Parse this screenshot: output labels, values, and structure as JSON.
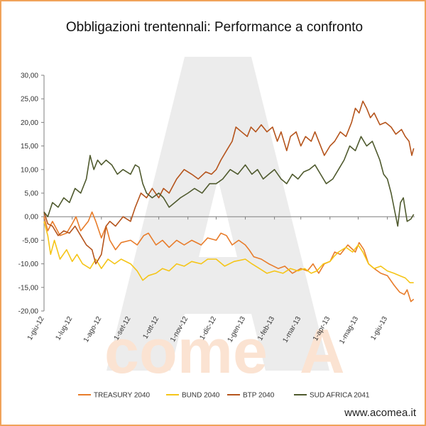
{
  "chart_data": {
    "type": "line",
    "title": "Obbligazioni trentennali: Performance a confronto",
    "ylim": [
      -20,
      30
    ],
    "yticks": [
      "30,00",
      "25,00",
      "20,00",
      "15,00",
      "10,00",
      "5,00",
      "0,00",
      "-5,00",
      "-10,00",
      "-15,00",
      "-20,00"
    ],
    "xlim": [
      "2012-06-01",
      "2013-06-30"
    ],
    "xticks": [
      {
        "label": "1-giu-12",
        "date": "2012-06-01"
      },
      {
        "label": "1-lug-12",
        "date": "2012-07-01"
      },
      {
        "label": "1-ago-12",
        "date": "2012-08-01"
      },
      {
        "label": "1-set-12",
        "date": "2012-09-01"
      },
      {
        "label": "1-ott-12",
        "date": "2012-10-01"
      },
      {
        "label": "1-nov-12",
        "date": "2012-11-01"
      },
      {
        "label": "1-dic-12",
        "date": "2012-12-01"
      },
      {
        "label": "1-gen-13",
        "date": "2013-01-01"
      },
      {
        "label": "1-feb-13",
        "date": "2013-02-01"
      },
      {
        "label": "1-mar-13",
        "date": "2013-03-01"
      },
      {
        "label": "1-apr-13",
        "date": "2013-04-01"
      },
      {
        "label": "1-mag-13",
        "date": "2013-05-01"
      },
      {
        "label": "1-giu-13",
        "date": "2013-06-01"
      }
    ],
    "legend_position": "bottom",
    "grid": false,
    "series": [
      {
        "name": "TREASURY 2040",
        "color": "#e87c2a",
        "points": [
          [
            "2012-06-01",
            0.0
          ],
          [
            "2012-06-05",
            -3.0
          ],
          [
            "2012-06-10",
            -1.0
          ],
          [
            "2012-06-18",
            -4.0
          ],
          [
            "2012-06-25",
            -3.5
          ],
          [
            "2012-07-01",
            -1.5
          ],
          [
            "2012-07-05",
            0.0
          ],
          [
            "2012-07-10",
            -3.0
          ],
          [
            "2012-07-18",
            -1.0
          ],
          [
            "2012-07-22",
            1.0
          ],
          [
            "2012-07-26",
            -1.0
          ],
          [
            "2012-08-01",
            -4.5
          ],
          [
            "2012-08-06",
            -2.0
          ],
          [
            "2012-08-10",
            -5.0
          ],
          [
            "2012-08-16",
            -7.0
          ],
          [
            "2012-08-22",
            -5.5
          ],
          [
            "2012-09-01",
            -5.0
          ],
          [
            "2012-09-08",
            -6.0
          ],
          [
            "2012-09-15",
            -4.0
          ],
          [
            "2012-09-20",
            -3.5
          ],
          [
            "2012-09-28",
            -6.0
          ],
          [
            "2012-10-05",
            -5.0
          ],
          [
            "2012-10-12",
            -6.5
          ],
          [
            "2012-10-20",
            -5.0
          ],
          [
            "2012-10-28",
            -6.0
          ],
          [
            "2012-11-05",
            -5.0
          ],
          [
            "2012-11-15",
            -6.0
          ],
          [
            "2012-11-22",
            -4.5
          ],
          [
            "2012-12-01",
            -5.0
          ],
          [
            "2012-12-06",
            -3.5
          ],
          [
            "2012-12-12",
            -4.0
          ],
          [
            "2012-12-18",
            -6.0
          ],
          [
            "2012-12-25",
            -5.0
          ],
          [
            "2013-01-01",
            -6.0
          ],
          [
            "2013-01-05",
            -7.0
          ],
          [
            "2013-01-10",
            -8.5
          ],
          [
            "2013-01-18",
            -9.0
          ],
          [
            "2013-01-26",
            -10.0
          ],
          [
            "2013-02-05",
            -11.0
          ],
          [
            "2013-02-12",
            -10.5
          ],
          [
            "2013-02-20",
            -12.0
          ],
          [
            "2013-03-01",
            -11.0
          ],
          [
            "2013-03-08",
            -11.5
          ],
          [
            "2013-03-14",
            -10.0
          ],
          [
            "2013-03-20",
            -12.0
          ],
          [
            "2013-03-26",
            -10.0
          ],
          [
            "2013-04-01",
            -9.5
          ],
          [
            "2013-04-06",
            -7.5
          ],
          [
            "2013-04-12",
            -8.0
          ],
          [
            "2013-04-20",
            -6.0
          ],
          [
            "2013-04-28",
            -7.5
          ],
          [
            "2013-05-02",
            -5.5
          ],
          [
            "2013-05-07",
            -7.0
          ],
          [
            "2013-05-12",
            -10.0
          ],
          [
            "2013-05-18",
            -11.0
          ],
          [
            "2013-05-25",
            -12.0
          ],
          [
            "2013-06-01",
            -12.5
          ],
          [
            "2013-06-08",
            -14.5
          ],
          [
            "2013-06-14",
            -16.0
          ],
          [
            "2013-06-19",
            -16.5
          ],
          [
            "2013-06-22",
            -15.5
          ],
          [
            "2013-06-26",
            -18.0
          ],
          [
            "2013-06-29",
            -17.5
          ]
        ]
      },
      {
        "name": "BUND 2040",
        "color": "#f5c518",
        "points": [
          [
            "2012-06-01",
            -1.0
          ],
          [
            "2012-06-05",
            -4.0
          ],
          [
            "2012-06-08",
            -8.0
          ],
          [
            "2012-06-12",
            -5.0
          ],
          [
            "2012-06-18",
            -9.0
          ],
          [
            "2012-06-25",
            -7.0
          ],
          [
            "2012-07-01",
            -9.5
          ],
          [
            "2012-07-06",
            -8.0
          ],
          [
            "2012-07-12",
            -10.0
          ],
          [
            "2012-07-20",
            -11.0
          ],
          [
            "2012-07-26",
            -9.0
          ],
          [
            "2012-08-01",
            -11.0
          ],
          [
            "2012-08-08",
            -9.0
          ],
          [
            "2012-08-15",
            -10.0
          ],
          [
            "2012-08-22",
            -9.0
          ],
          [
            "2012-09-01",
            -10.0
          ],
          [
            "2012-09-08",
            -11.5
          ],
          [
            "2012-09-14",
            -13.5
          ],
          [
            "2012-09-20",
            -12.5
          ],
          [
            "2012-09-28",
            -12.0
          ],
          [
            "2012-10-05",
            -11.0
          ],
          [
            "2012-10-12",
            -11.5
          ],
          [
            "2012-10-20",
            -10.0
          ],
          [
            "2012-10-28",
            -10.5
          ],
          [
            "2012-11-05",
            -9.5
          ],
          [
            "2012-11-15",
            -10.0
          ],
          [
            "2012-11-22",
            -9.0
          ],
          [
            "2012-12-01",
            -9.0
          ],
          [
            "2012-12-10",
            -10.5
          ],
          [
            "2012-12-20",
            -9.5
          ],
          [
            "2013-01-01",
            -9.0
          ],
          [
            "2013-01-08",
            -10.0
          ],
          [
            "2013-01-16",
            -11.0
          ],
          [
            "2013-01-24",
            -12.0
          ],
          [
            "2013-02-01",
            -11.5
          ],
          [
            "2013-02-10",
            -12.0
          ],
          [
            "2013-02-18",
            -11.0
          ],
          [
            "2013-02-26",
            -11.5
          ],
          [
            "2013-03-05",
            -11.0
          ],
          [
            "2013-03-12",
            -12.0
          ],
          [
            "2013-03-18",
            -11.5
          ],
          [
            "2013-03-25",
            -10.0
          ],
          [
            "2013-04-01",
            -9.5
          ],
          [
            "2013-04-05",
            -8.5
          ],
          [
            "2013-04-10",
            -7.5
          ],
          [
            "2013-04-18",
            -6.5
          ],
          [
            "2013-04-25",
            -7.5
          ],
          [
            "2013-05-01",
            -6.0
          ],
          [
            "2013-05-06",
            -7.5
          ],
          [
            "2013-05-12",
            -10.0
          ],
          [
            "2013-05-18",
            -11.0
          ],
          [
            "2013-05-25",
            -10.5
          ],
          [
            "2013-06-01",
            -11.5
          ],
          [
            "2013-06-08",
            -12.0
          ],
          [
            "2013-06-14",
            -12.5
          ],
          [
            "2013-06-20",
            -13.0
          ],
          [
            "2013-06-25",
            -14.0
          ],
          [
            "2013-06-29",
            -14.0
          ]
        ]
      },
      {
        "name": "BTP 2040",
        "color": "#b5541c",
        "points": [
          [
            "2012-06-01",
            1.0
          ],
          [
            "2012-06-05",
            -1.5
          ],
          [
            "2012-06-10",
            -2.0
          ],
          [
            "2012-06-16",
            -4.0
          ],
          [
            "2012-06-22",
            -3.0
          ],
          [
            "2012-06-28",
            -3.5
          ],
          [
            "2012-07-04",
            -2.0
          ],
          [
            "2012-07-10",
            -4.0
          ],
          [
            "2012-07-16",
            -6.0
          ],
          [
            "2012-07-22",
            -7.0
          ],
          [
            "2012-07-26",
            -10.0
          ],
          [
            "2012-08-01",
            -8.0
          ],
          [
            "2012-08-06",
            -2.0
          ],
          [
            "2012-08-10",
            -1.0
          ],
          [
            "2012-08-16",
            -2.0
          ],
          [
            "2012-08-24",
            0.0
          ],
          [
            "2012-09-01",
            -1.0
          ],
          [
            "2012-09-06",
            2.0
          ],
          [
            "2012-09-12",
            5.0
          ],
          [
            "2012-09-18",
            4.0
          ],
          [
            "2012-09-24",
            6.0
          ],
          [
            "2012-10-01",
            4.0
          ],
          [
            "2012-10-06",
            6.0
          ],
          [
            "2012-10-12",
            5.0
          ],
          [
            "2012-10-20",
            8.0
          ],
          [
            "2012-10-28",
            10.0
          ],
          [
            "2012-11-05",
            9.0
          ],
          [
            "2012-11-12",
            8.0
          ],
          [
            "2012-11-20",
            9.5
          ],
          [
            "2012-11-26",
            9.0
          ],
          [
            "2012-12-01",
            10.0
          ],
          [
            "2012-12-06",
            12.0
          ],
          [
            "2012-12-12",
            14.0
          ],
          [
            "2012-12-18",
            16.0
          ],
          [
            "2012-12-22",
            19.0
          ],
          [
            "2012-12-28",
            18.0
          ],
          [
            "2013-01-03",
            17.0
          ],
          [
            "2013-01-07",
            19.0
          ],
          [
            "2013-01-12",
            18.0
          ],
          [
            "2013-01-18",
            19.5
          ],
          [
            "2013-01-24",
            18.0
          ],
          [
            "2013-01-30",
            19.0
          ],
          [
            "2013-02-04",
            16.0
          ],
          [
            "2013-02-08",
            18.0
          ],
          [
            "2013-02-14",
            14.0
          ],
          [
            "2013-02-18",
            17.0
          ],
          [
            "2013-02-24",
            18.0
          ],
          [
            "2013-03-01",
            15.0
          ],
          [
            "2013-03-06",
            17.0
          ],
          [
            "2013-03-12",
            16.0
          ],
          [
            "2013-03-16",
            18.0
          ],
          [
            "2013-03-22",
            15.0
          ],
          [
            "2013-03-26",
            13.0
          ],
          [
            "2013-04-01",
            15.0
          ],
          [
            "2013-04-06",
            16.0
          ],
          [
            "2013-04-12",
            18.0
          ],
          [
            "2013-04-18",
            17.0
          ],
          [
            "2013-04-24",
            20.0
          ],
          [
            "2013-04-28",
            23.0
          ],
          [
            "2013-05-02",
            22.0
          ],
          [
            "2013-05-06",
            24.5
          ],
          [
            "2013-05-10",
            23.0
          ],
          [
            "2013-05-14",
            21.0
          ],
          [
            "2013-05-18",
            22.0
          ],
          [
            "2013-05-24",
            19.5
          ],
          [
            "2013-05-30",
            20.0
          ],
          [
            "2013-06-05",
            19.0
          ],
          [
            "2013-06-10",
            17.5
          ],
          [
            "2013-06-16",
            18.5
          ],
          [
            "2013-06-20",
            17.0
          ],
          [
            "2013-06-24",
            16.0
          ],
          [
            "2013-06-27",
            13.0
          ],
          [
            "2013-06-29",
            14.5
          ]
        ]
      },
      {
        "name": "SUD AFRICA 2041",
        "color": "#4f5a2e",
        "points": [
          [
            "2012-06-01",
            1.0
          ],
          [
            "2012-06-05",
            0.0
          ],
          [
            "2012-06-10",
            3.0
          ],
          [
            "2012-06-16",
            2.0
          ],
          [
            "2012-06-22",
            4.0
          ],
          [
            "2012-06-28",
            3.0
          ],
          [
            "2012-07-04",
            6.0
          ],
          [
            "2012-07-10",
            5.0
          ],
          [
            "2012-07-16",
            8.0
          ],
          [
            "2012-07-20",
            13.0
          ],
          [
            "2012-07-24",
            10.0
          ],
          [
            "2012-07-28",
            12.0
          ],
          [
            "2012-08-01",
            11.0
          ],
          [
            "2012-08-06",
            12.0
          ],
          [
            "2012-08-12",
            11.0
          ],
          [
            "2012-08-18",
            9.0
          ],
          [
            "2012-08-24",
            10.0
          ],
          [
            "2012-09-01",
            9.0
          ],
          [
            "2012-09-06",
            11.0
          ],
          [
            "2012-09-10",
            10.5
          ],
          [
            "2012-09-14",
            7.0
          ],
          [
            "2012-09-18",
            5.0
          ],
          [
            "2012-09-24",
            4.0
          ],
          [
            "2012-10-01",
            5.0
          ],
          [
            "2012-10-06",
            4.0
          ],
          [
            "2012-10-12",
            2.0
          ],
          [
            "2012-10-18",
            3.0
          ],
          [
            "2012-10-24",
            4.0
          ],
          [
            "2012-11-01",
            5.0
          ],
          [
            "2012-11-08",
            6.0
          ],
          [
            "2012-11-16",
            5.0
          ],
          [
            "2012-11-24",
            7.0
          ],
          [
            "2012-12-01",
            7.0
          ],
          [
            "2012-12-08",
            8.0
          ],
          [
            "2012-12-16",
            10.0
          ],
          [
            "2012-12-24",
            9.0
          ],
          [
            "2013-01-01",
            11.0
          ],
          [
            "2013-01-08",
            9.0
          ],
          [
            "2013-01-14",
            10.0
          ],
          [
            "2013-01-20",
            8.0
          ],
          [
            "2013-01-26",
            9.0
          ],
          [
            "2013-02-01",
            10.0
          ],
          [
            "2013-02-08",
            8.0
          ],
          [
            "2013-02-14",
            7.0
          ],
          [
            "2013-02-20",
            9.0
          ],
          [
            "2013-02-26",
            8.0
          ],
          [
            "2013-03-04",
            9.5
          ],
          [
            "2013-03-10",
            10.0
          ],
          [
            "2013-03-16",
            11.0
          ],
          [
            "2013-03-22",
            9.0
          ],
          [
            "2013-03-28",
            7.0
          ],
          [
            "2013-04-04",
            8.0
          ],
          [
            "2013-04-10",
            10.0
          ],
          [
            "2013-04-16",
            12.0
          ],
          [
            "2013-04-22",
            15.0
          ],
          [
            "2013-04-28",
            14.0
          ],
          [
            "2013-05-04",
            17.0
          ],
          [
            "2013-05-10",
            15.0
          ],
          [
            "2013-05-16",
            16.0
          ],
          [
            "2013-05-20",
            14.0
          ],
          [
            "2013-05-24",
            12.0
          ],
          [
            "2013-05-28",
            9.0
          ],
          [
            "2013-06-01",
            8.0
          ],
          [
            "2013-06-05",
            5.0
          ],
          [
            "2013-06-09",
            1.0
          ],
          [
            "2013-06-12",
            -2.0
          ],
          [
            "2013-06-15",
            3.0
          ],
          [
            "2013-06-18",
            4.0
          ],
          [
            "2013-06-22",
            -1.0
          ],
          [
            "2013-06-26",
            -0.5
          ],
          [
            "2013-06-29",
            0.5
          ]
        ]
      }
    ]
  },
  "watermark": {
    "word": "come",
    "letter": "A"
  },
  "website": "www.acomea.it"
}
